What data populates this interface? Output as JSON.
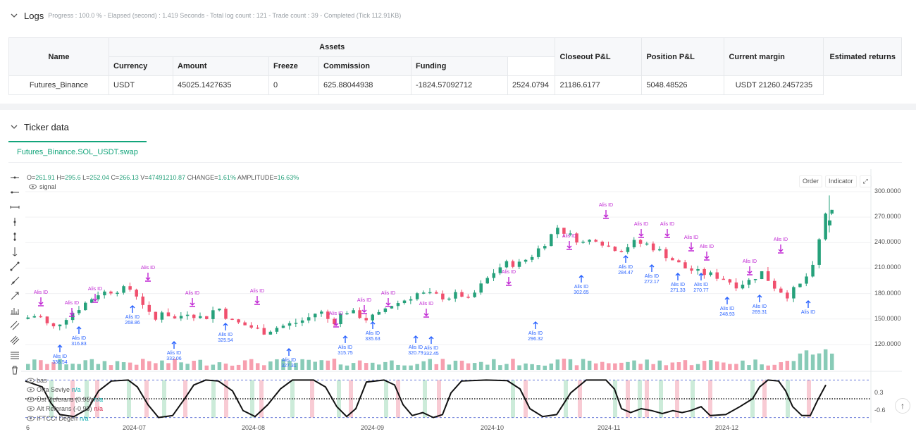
{
  "logs": {
    "title": "Logs",
    "progress": "Progress : 100.0 % - Elapsed (second) : 1.419  Seconds - Total log count : 121 - Trade count : 39 - Completed (Tick 112.91KB)"
  },
  "assets_table": {
    "headers": {
      "name": "Name",
      "assets": "Assets",
      "currency": "Currency",
      "amount": "Amount",
      "freeze": "Freeze",
      "commission": "Commission",
      "funding": "Funding",
      "closeout_pnl": "Closeout P&L",
      "position_pnl": "Position P&L",
      "current_margin": "Current margin",
      "estimated_returns": "Estimated returns"
    },
    "row": {
      "name": "Futures_Binance",
      "currency": "USDT",
      "amount": "45025.1427635",
      "freeze": "0",
      "commission": "625.88044938",
      "funding": "-1824.57092712",
      "closeout_pnl": "2524.0794",
      "position_pnl": "21186.6177",
      "current_margin": "5048.48526",
      "estimated_returns": "USDT 21260.2457235"
    }
  },
  "ticker": {
    "title": "Ticker data",
    "tab": "Futures_Binance.SOL_USDT.swap",
    "ohlc": {
      "o_label": "O=",
      "o": "261.91",
      "h_label": "H=",
      "h": "295.6",
      "l_label": "L=",
      "l": "252.04",
      "c_label": "C=",
      "c": "266.13",
      "v_label": "V=",
      "v": "47491210.87",
      "change_label": "CHANGE=",
      "change": "1.61%",
      "amplitude_label": "AMPLITUDE=",
      "amplitude": "16.63%"
    },
    "signal_label": "signal",
    "buttons": {
      "order": "Order",
      "indicator": "Indicator"
    },
    "price_axis": [
      "300.0000",
      "270.0000",
      "240.0000",
      "210.0000",
      "180.0000",
      "150.0000",
      "120.0000"
    ],
    "osc_axis": [
      "0.3",
      "-0.6"
    ],
    "time_axis": [
      "6",
      "2024-07",
      "2024-08",
      "2024-09",
      "2024-10",
      "2024-11",
      "2024-12"
    ],
    "indicator_legends": [
      {
        "name": "bas",
        "value": ""
      },
      {
        "name": "Orta Seviye",
        "value": "n/a"
      },
      {
        "name": "Üst Referans (0.95)",
        "value": "n/a"
      },
      {
        "name": "Alt Referans (-0.95)",
        "value": "n/a"
      },
      {
        "name": "IFTCCI Değeri",
        "value": "n/a"
      }
    ],
    "signal_name": "Alis ID",
    "signal_prices": [
      "338.54",
      "316.83",
      "268.86",
      "332.06",
      "325.54",
      "327.31",
      "315.75",
      "335.63",
      "320.79",
      "332.45",
      "296.32",
      "302.65",
      "284.47",
      "272.17",
      "271.33",
      "270.77",
      "248.93",
      "269.31"
    ],
    "colors": {
      "up": "#26a17b",
      "down": "#f0506e",
      "buy": "#2962ff",
      "sell": "#c026d3",
      "accent": "#13a57b"
    }
  }
}
